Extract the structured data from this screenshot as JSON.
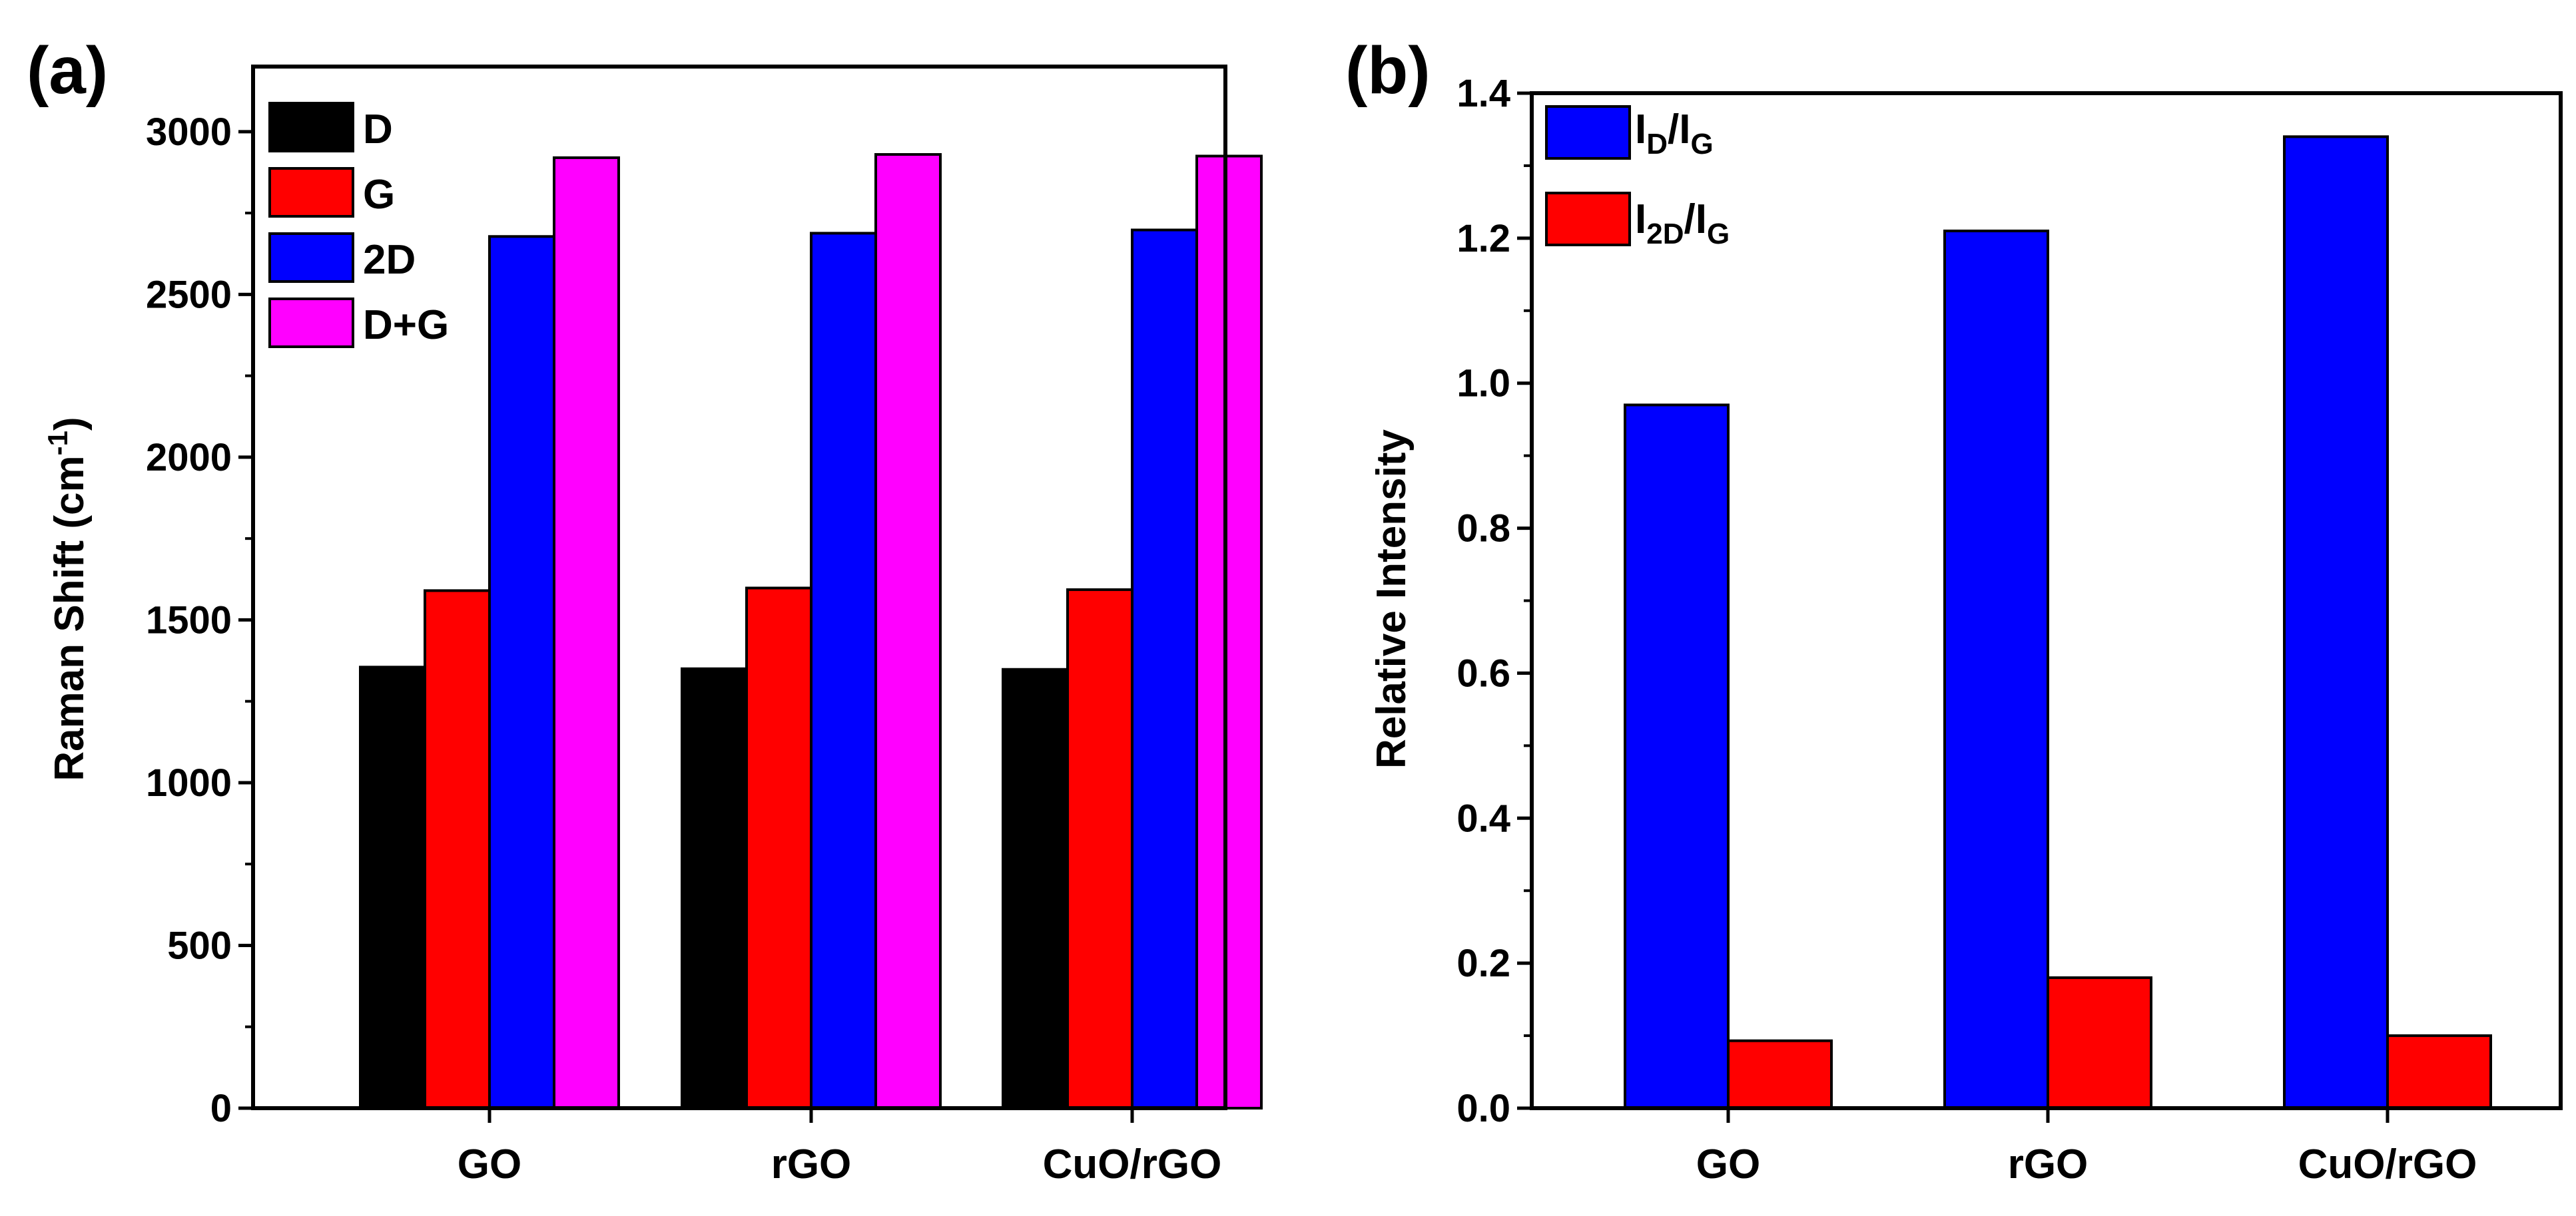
{
  "chart_data": [
    {
      "type": "bar",
      "panel_label": "(a)",
      "title": "",
      "xlabel": "",
      "ylabel": "Raman Shift (cm",
      "ylabel_superscript": "-1",
      "ylabel_close": ")",
      "ylim": [
        0,
        3200
      ],
      "yticks": [
        0,
        500,
        1000,
        1500,
        2000,
        2500,
        3000
      ],
      "categories": [
        "GO",
        "rGO",
        "CuO/rGO"
      ],
      "legend_position": "top-left",
      "series": [
        {
          "name": "D",
          "color": "#000000",
          "values": [
            1355,
            1350,
            1348
          ]
        },
        {
          "name": "G",
          "color": "#ff0000",
          "values": [
            1590,
            1598,
            1593
          ]
        },
        {
          "name": "2D",
          "color": "#0000ff",
          "values": [
            2678,
            2688,
            2698
          ]
        },
        {
          "name": "D+G",
          "color": "#ff00ff",
          "values": [
            2920,
            2930,
            2925
          ]
        }
      ]
    },
    {
      "type": "bar",
      "panel_label": "(b)",
      "title": "",
      "xlabel": "",
      "ylabel": "Relative Intensity",
      "ylim": [
        0,
        1.4
      ],
      "yticks": [
        "0.0",
        "0.2",
        "0.4",
        "0.6",
        "0.8",
        "1.0",
        "1.2",
        "1.4"
      ],
      "categories": [
        "GO",
        "rGO",
        "CuO/rGO"
      ],
      "legend_position": "top-left",
      "series": [
        {
          "name": "ID/IG",
          "label_main": "I",
          "label_sub1": "D",
          "label_mid": "/I",
          "label_sub2": "G",
          "color": "#0000ff",
          "values": [
            0.97,
            1.21,
            1.34
          ]
        },
        {
          "name": "I2D/IG",
          "label_main": "I",
          "label_sub1": "2D",
          "label_mid": "/I",
          "label_sub2": "G",
          "color": "#ff0000",
          "values": [
            0.093,
            0.18,
            0.1
          ]
        }
      ]
    }
  ]
}
